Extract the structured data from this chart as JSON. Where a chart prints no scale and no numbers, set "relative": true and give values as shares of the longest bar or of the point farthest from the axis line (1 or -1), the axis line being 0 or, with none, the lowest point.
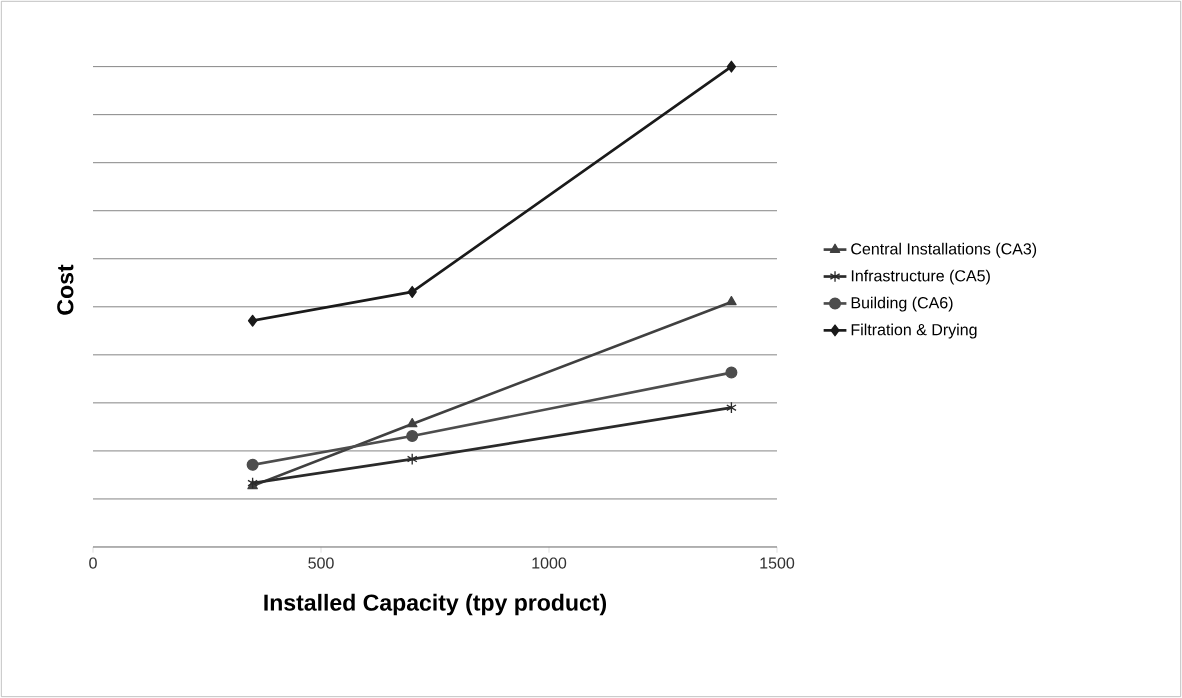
{
  "chart_data": {
    "type": "line",
    "relative": true,
    "xlabel": "Installed Capacity (tpy product)",
    "ylabel": "Cost",
    "xlim": [
      0,
      1500
    ],
    "xticks": [
      0,
      500,
      1000,
      1500
    ],
    "grid": "y",
    "legend": "right",
    "series": [
      {
        "name": "Central Installations (CA3)",
        "color": "#404040",
        "marker": "triangle",
        "x": [
          350,
          700,
          1400
        ],
        "values": [
          0.127,
          0.256,
          0.51
        ]
      },
      {
        "name": "Infrastructure (CA5)",
        "color": "#2a2a2a",
        "marker": "cross",
        "x": [
          350,
          700,
          1400
        ],
        "values": [
          0.133,
          0.183,
          0.29
        ]
      },
      {
        "name": "Building (CA6)",
        "color": "#4d4d4d",
        "marker": "circle",
        "x": [
          350,
          700,
          1400
        ],
        "values": [
          0.171,
          0.231,
          0.363
        ]
      },
      {
        "name": "Filtration & Drying",
        "color": "#1a1a1a",
        "marker": "diamond",
        "x": [
          350,
          700,
          1400
        ],
        "values": [
          0.471,
          0.531,
          1
        ]
      }
    ]
  }
}
